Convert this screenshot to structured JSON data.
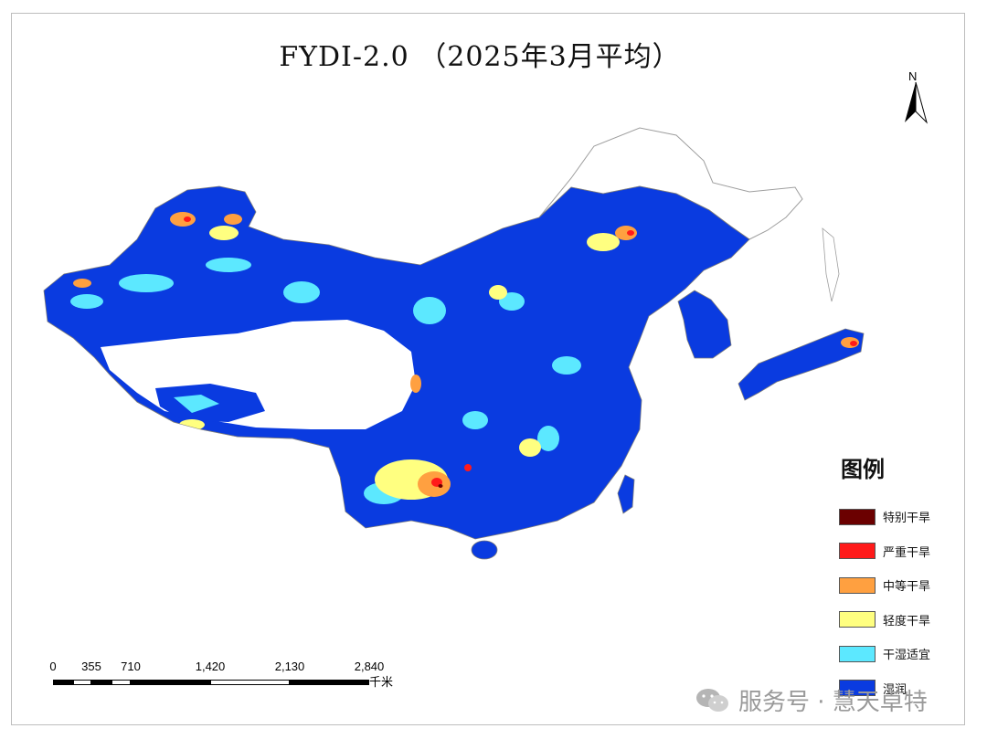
{
  "title": "FYDI-2.0 （2025年3月平均）",
  "north_arrow_label": "N",
  "legend": {
    "title": "图例",
    "items": [
      {
        "label": "特别干旱",
        "color": "#6b0000"
      },
      {
        "label": "严重干旱",
        "color": "#ff1a1a"
      },
      {
        "label": "中等干旱",
        "color": "#ffa040"
      },
      {
        "label": "轻度干旱",
        "color": "#ffff80"
      },
      {
        "label": "干湿适宜",
        "color": "#5ce8ff"
      },
      {
        "label": "湿润",
        "color": "#0a3be0"
      }
    ]
  },
  "scale_bar": {
    "ticks": [
      "0",
      "355",
      "710",
      "1,420",
      "2,130",
      "2,840"
    ],
    "unit": "千米"
  },
  "watermark": {
    "text": "服务号 · 慧天卓特",
    "icon": "wechat-icon"
  },
  "colors": {
    "wet": "#0a3be0",
    "suitable": "#5ce8ff",
    "light": "#ffff80",
    "moderate": "#ffa040",
    "severe": "#ff1a1a",
    "extreme": "#6b0000"
  }
}
